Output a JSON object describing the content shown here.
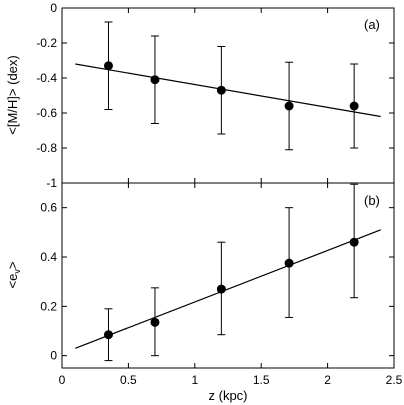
{
  "chart_data": [
    {
      "type": "scatter",
      "panel_label": "(a)",
      "ylabel": "<[M/H]> (dex)",
      "xlabel": "",
      "xlim": [
        0,
        2.5
      ],
      "ylim": [
        -1,
        0
      ],
      "x_ticks": [
        0,
        0.5,
        1,
        1.5,
        2,
        2.5
      ],
      "y_ticks": [
        0,
        -0.2,
        -0.4,
        -0.6,
        -0.8,
        -1
      ],
      "y_tick_labels": [
        "0",
        "-0.2",
        "-0.4",
        "-0.6",
        "-0.8",
        "-1"
      ],
      "grid": false,
      "points": [
        {
          "x": 0.35,
          "y": -0.33,
          "yerr_low": -0.58,
          "yerr_high": -0.08
        },
        {
          "x": 0.7,
          "y": -0.41,
          "yerr_low": -0.66,
          "yerr_high": -0.16
        },
        {
          "x": 1.2,
          "y": -0.47,
          "yerr_low": -0.72,
          "yerr_high": -0.22
        },
        {
          "x": 1.71,
          "y": -0.56,
          "yerr_low": -0.81,
          "yerr_high": -0.31
        },
        {
          "x": 2.2,
          "y": -0.56,
          "yerr_low": -0.8,
          "yerr_high": -0.32
        }
      ],
      "fit_line": {
        "x": [
          0.1,
          2.4
        ],
        "y": [
          -0.32,
          -0.62
        ]
      }
    },
    {
      "type": "scatter",
      "panel_label": "(b)",
      "ylabel": "<e_v>",
      "ylabel_main": "<e",
      "ylabel_sub": "v",
      "ylabel_end": ">",
      "xlabel": "z (kpc)",
      "xlim": [
        0,
        2.5
      ],
      "ylim": [
        -0.05,
        0.7
      ],
      "x_ticks": [
        0,
        0.5,
        1,
        1.5,
        2,
        2.5
      ],
      "x_tick_labels": [
        "0",
        "0.5",
        "1",
        "1.5",
        "2",
        "2.5"
      ],
      "y_ticks": [
        0,
        0.2,
        0.4,
        0.6
      ],
      "y_tick_labels": [
        "0",
        "0.2",
        "0.4",
        "0.6"
      ],
      "grid": false,
      "points": [
        {
          "x": 0.35,
          "y": 0.085,
          "yerr_low": -0.02,
          "yerr_high": 0.19
        },
        {
          "x": 0.7,
          "y": 0.135,
          "yerr_low": 0.0,
          "yerr_high": 0.275
        },
        {
          "x": 1.2,
          "y": 0.27,
          "yerr_low": 0.085,
          "yerr_high": 0.46
        },
        {
          "x": 1.71,
          "y": 0.375,
          "yerr_low": 0.155,
          "yerr_high": 0.6
        },
        {
          "x": 2.2,
          "y": 0.46,
          "yerr_low": 0.235,
          "yerr_high": 0.695
        }
      ],
      "fit_line": {
        "x": [
          0.1,
          2.4
        ],
        "y": [
          0.03,
          0.51
        ]
      }
    }
  ]
}
